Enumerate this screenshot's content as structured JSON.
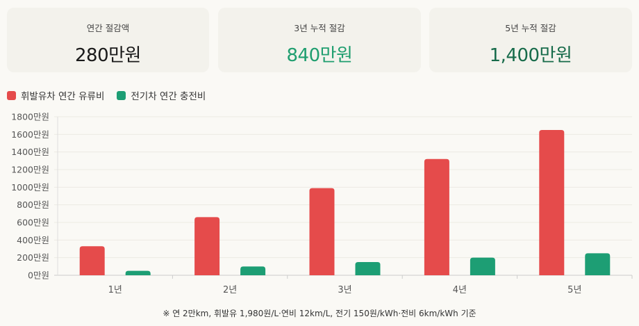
{
  "cards": [
    {
      "label": "연간 절감액",
      "value": "280만원",
      "color": "#1a1a1a"
    },
    {
      "label": "3년 누적 절감",
      "value": "840만원",
      "color": "#1f9e6f"
    },
    {
      "label": "5년 누적 절감",
      "value": "1,400만원",
      "color": "#176b4a"
    }
  ],
  "note": "※ 연 2만km, 휘발유 1,980원/L·연비 12km/L, 전기 150원/kWh·전비 6km/kWh 기준",
  "chart_data": {
    "type": "bar",
    "categories": [
      "1년",
      "2년",
      "3년",
      "4년",
      "5년"
    ],
    "series": [
      {
        "name": "휘발유차 연간 유류비",
        "color": "#e54b4b",
        "values": [
          330,
          660,
          990,
          1320,
          1650
        ]
      },
      {
        "name": "전기차 연간 충전비",
        "color": "#1d9e74",
        "values": [
          50,
          100,
          150,
          200,
          250
        ]
      }
    ],
    "ylim": [
      0,
      1800
    ],
    "yticks": [
      0,
      200,
      400,
      600,
      800,
      1000,
      1200,
      1400,
      1600,
      1800
    ],
    "ytick_suffix": "만원",
    "grid": true,
    "legend": "top-left"
  }
}
